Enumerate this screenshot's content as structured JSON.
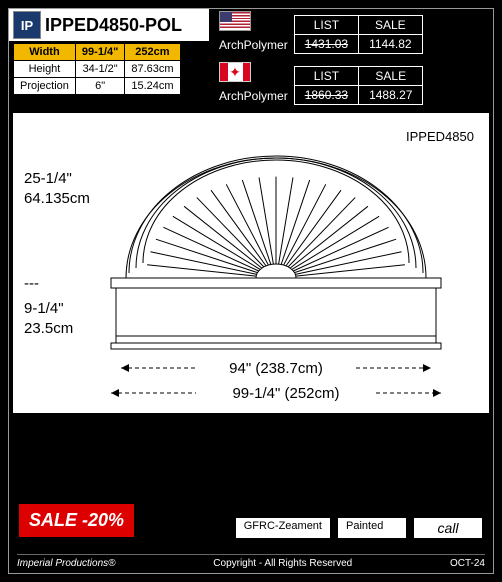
{
  "logo": "IP",
  "product_code": "IPPED4850-POL",
  "dims": {
    "headers": [
      "Width",
      "99-1/4\"",
      "252cm"
    ],
    "rows": [
      [
        "Height",
        "34-1/2\"",
        "87.63cm"
      ],
      [
        "Projection",
        "6\"",
        "15.24cm"
      ]
    ]
  },
  "prices": [
    {
      "flag": "us",
      "material": "ArchPolymer",
      "list_label": "LIST",
      "sale_label": "SALE",
      "list": "1431.03",
      "sale": "1144.82"
    },
    {
      "flag": "ca",
      "material": "ArchPolymer",
      "list_label": "LIST",
      "sale_label": "SALE",
      "list": "1860.33",
      "sale": "1488.27"
    }
  ],
  "diagram": {
    "part_label": "IPPED4850",
    "arc_height_in": "25-1/4\"",
    "arc_height_cm": "64.135cm",
    "dash": "---",
    "base_height_in": "9-1/4\"",
    "base_height_cm": "23.5cm",
    "inner_width": "94\" (238.7cm)",
    "outer_width": "99-1/4\"  (252cm)",
    "colors": {
      "stroke": "#000000",
      "bg": "#ffffff"
    }
  },
  "sale_badge": "SALE   -20%",
  "bottom": {
    "b1": "GFRC-Zeament",
    "b2": "Painted",
    "b3": "call"
  },
  "footer": {
    "brand": "Imperial Productions®",
    "copy": "Copyright - All Rights Reserved",
    "date": "OCT-24"
  }
}
